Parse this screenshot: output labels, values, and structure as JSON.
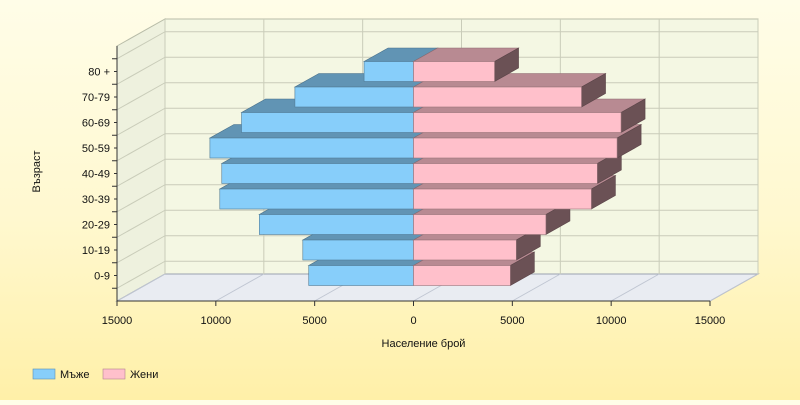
{
  "chart_data": {
    "type": "bar",
    "orientation": "horizontal",
    "style": "3d population pyramid",
    "categories": [
      "0-9",
      "10-19",
      "20-29",
      "30-39",
      "40-49",
      "50-59",
      "60-69",
      "70-79",
      "80 +"
    ],
    "series": [
      {
        "name": "Мъже",
        "values": [
          5300,
          5600,
          7800,
          9800,
          9700,
          10300,
          8700,
          6000,
          2500
        ],
        "color": "#87cefa"
      },
      {
        "name": "Жени",
        "values": [
          4900,
          5200,
          6700,
          9000,
          9300,
          10300,
          10500,
          8500,
          4100
        ],
        "color": "#ffc0cb"
      }
    ],
    "xlabel": "Население брой",
    "ylabel": "Възраст",
    "xlim": [
      -15000,
      15000
    ],
    "x_ticks": [
      -15000,
      -10000,
      -5000,
      0,
      5000,
      10000,
      15000
    ],
    "x_tick_labels": [
      "15000",
      "10000",
      "5000",
      "0",
      "5000",
      "10000",
      "15000"
    ],
    "grid": true,
    "legend_position": "bottom-left"
  }
}
